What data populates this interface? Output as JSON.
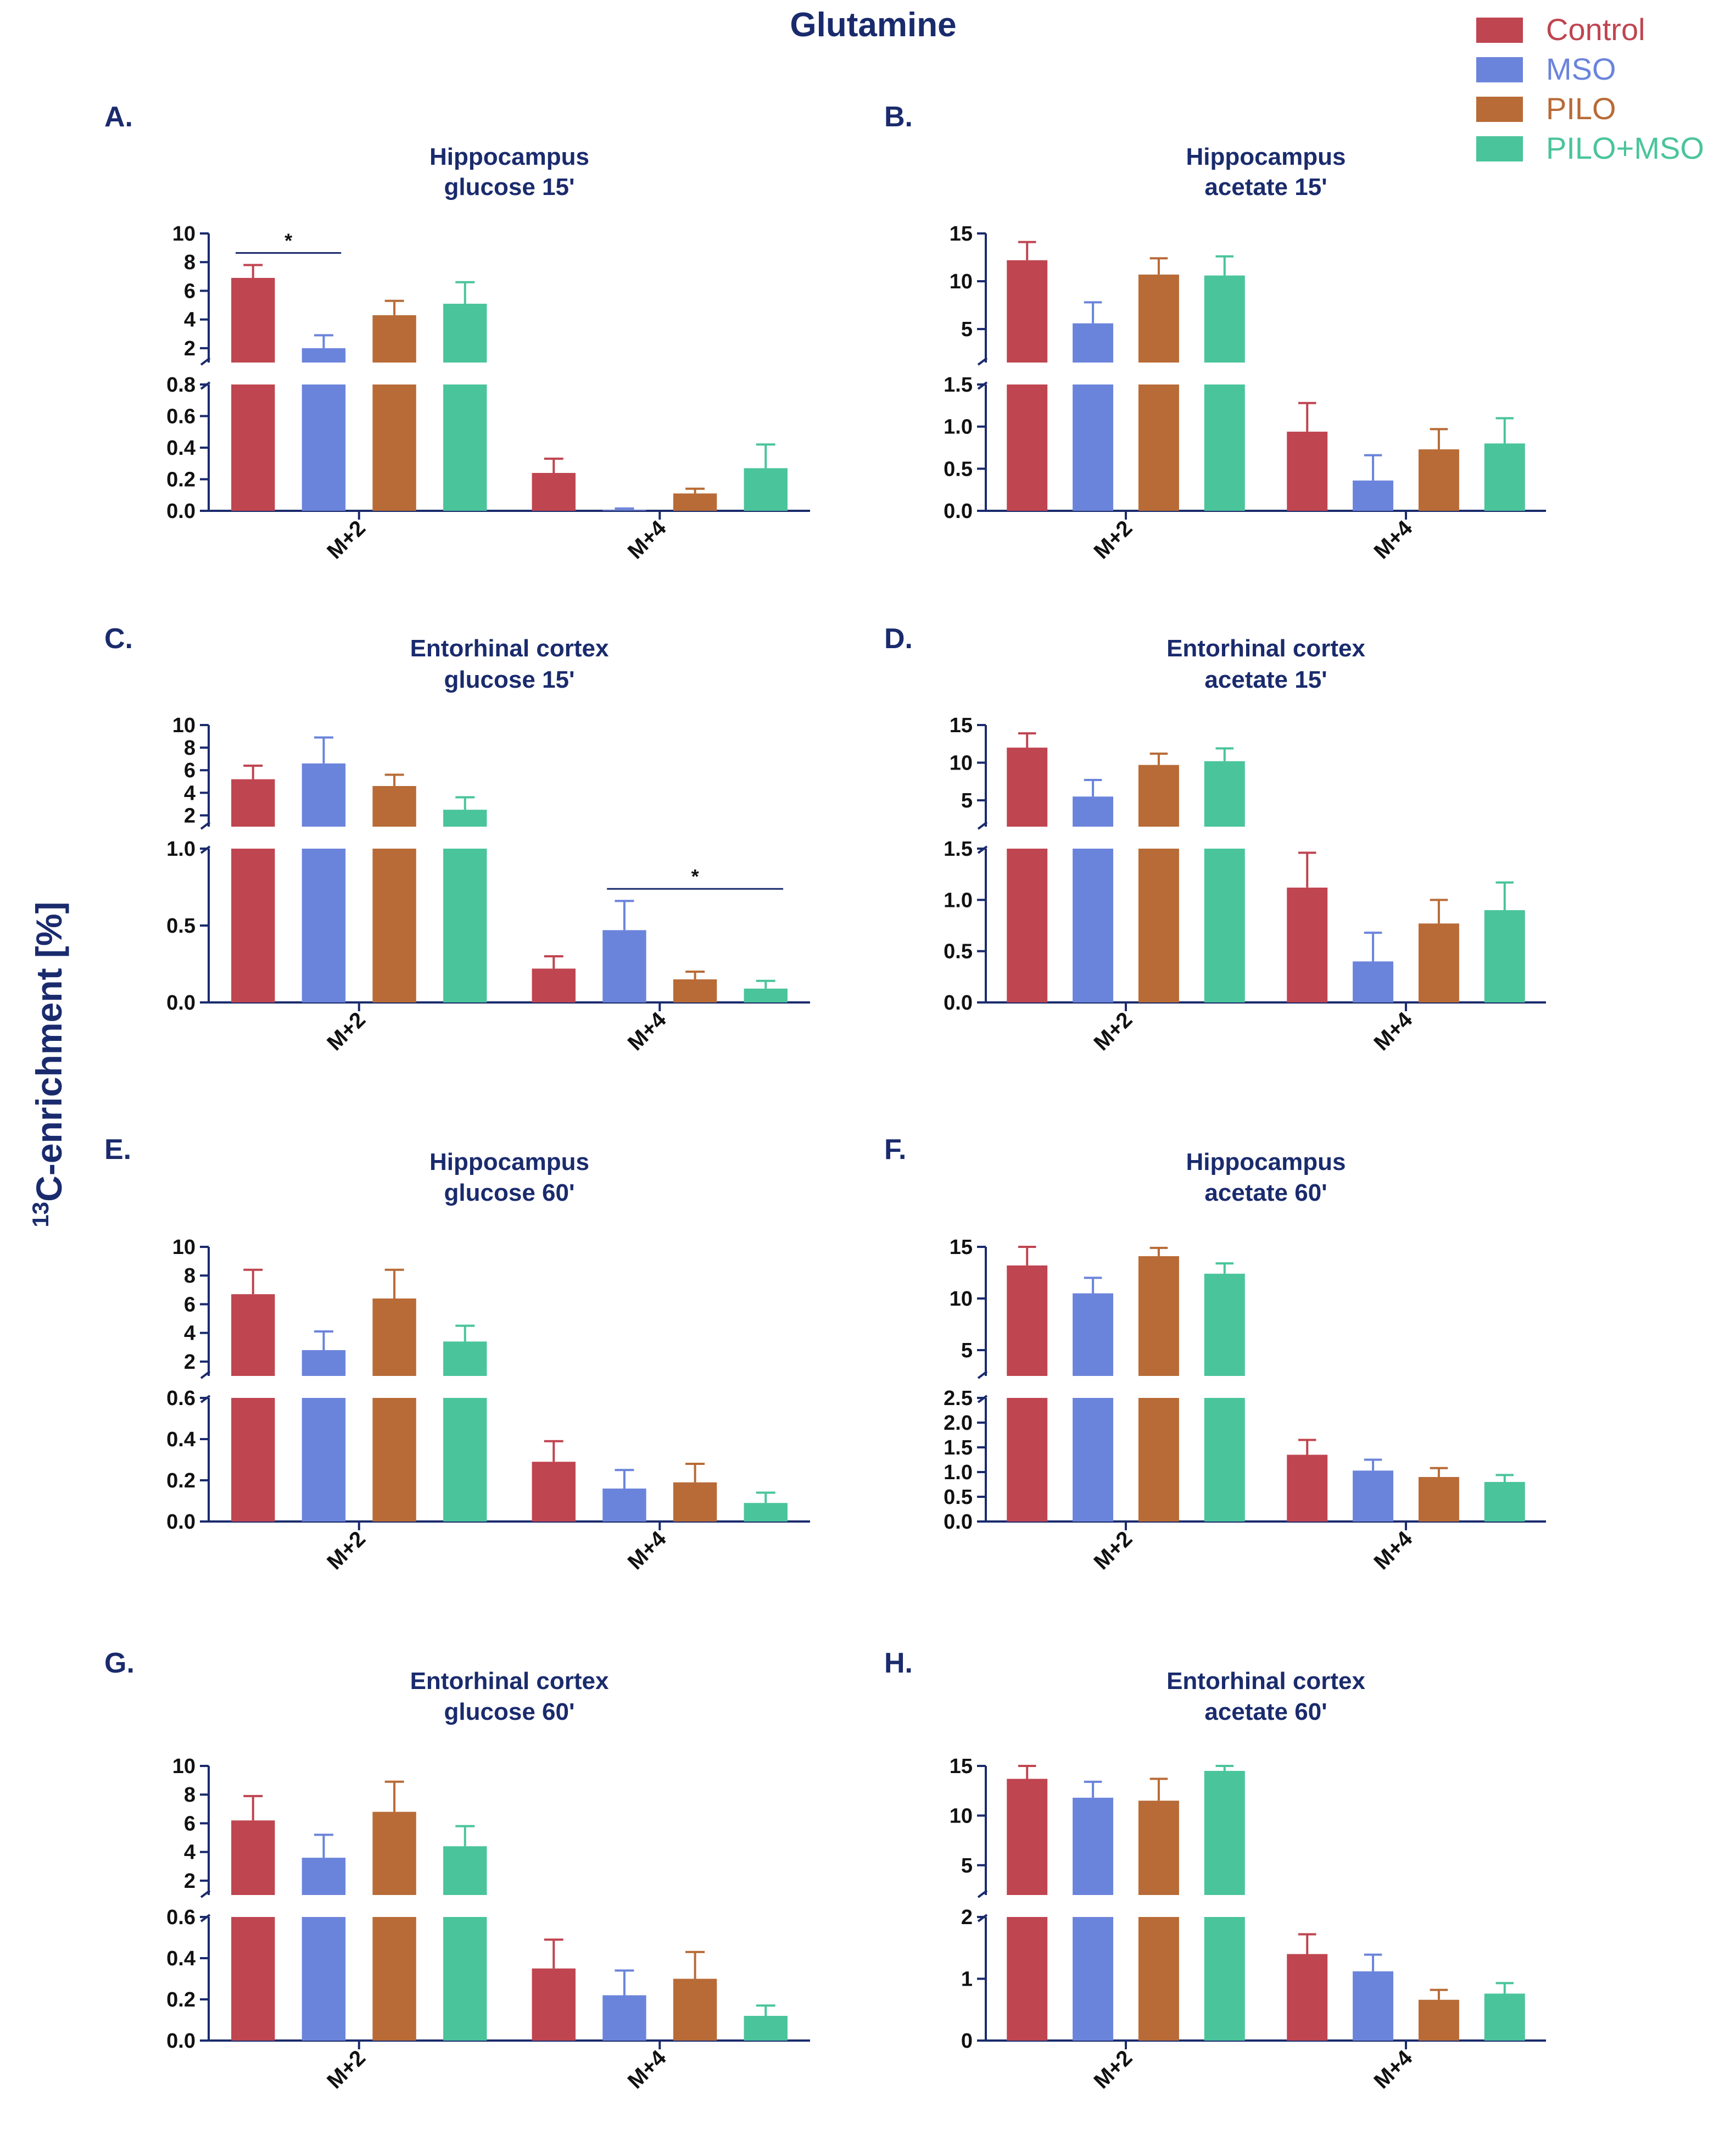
{
  "figure": {
    "title": "Glutamine",
    "ylabel_sup": "13",
    "ylabel_main": "C-enrichment [%]"
  },
  "legend": [
    {
      "name": "Control",
      "color": "#bf4550"
    },
    {
      "name": "MSO",
      "color": "#6b84db"
    },
    {
      "name": "PILO",
      "color": "#b86b37"
    },
    {
      "name": "PILO+MSO",
      "color": "#4ac49b"
    }
  ],
  "chart_data": [
    {
      "panel": "A.",
      "title": [
        "Hippocampus",
        "glucose 15'"
      ],
      "type": "bar",
      "categories": [
        "M+2",
        "M+4"
      ],
      "axis_break": true,
      "upper_range": [
        1,
        10
      ],
      "upper_ticks": [
        2,
        4,
        6,
        8,
        10
      ],
      "lower_range": [
        0,
        0.8
      ],
      "lower_ticks": [
        0.0,
        0.2,
        0.4,
        0.6,
        0.8
      ],
      "series": [
        {
          "name": "Control",
          "values": [
            6.9,
            0.24
          ],
          "errors": [
            0.9,
            0.09
          ]
        },
        {
          "name": "MSO",
          "values": [
            2.0,
            0.005
          ],
          "errors": [
            0.9,
            0.01
          ]
        },
        {
          "name": "PILO",
          "values": [
            4.3,
            0.11
          ],
          "errors": [
            1.0,
            0.03
          ]
        },
        {
          "name": "PILO+MSO",
          "values": [
            5.1,
            0.27
          ],
          "errors": [
            1.5,
            0.15
          ]
        }
      ],
      "significance": [
        {
          "category": "M+2",
          "from": "Control",
          "to": "MSO",
          "label": "*"
        }
      ]
    },
    {
      "panel": "B.",
      "title": [
        "Hippocampus",
        "acetate 15'"
      ],
      "type": "bar",
      "categories": [
        "M+2",
        "M+4"
      ],
      "axis_break": true,
      "upper_range": [
        1.5,
        15
      ],
      "upper_ticks": [
        5,
        10,
        15
      ],
      "lower_range": [
        0,
        1.5
      ],
      "lower_ticks": [
        0.0,
        0.5,
        1.0,
        1.5
      ],
      "series": [
        {
          "name": "Control",
          "values": [
            12.2,
            0.94
          ],
          "errors": [
            1.9,
            0.34
          ]
        },
        {
          "name": "MSO",
          "values": [
            5.6,
            0.36
          ],
          "errors": [
            2.2,
            0.3
          ]
        },
        {
          "name": "PILO",
          "values": [
            10.7,
            0.73
          ],
          "errors": [
            1.7,
            0.24
          ]
        },
        {
          "name": "PILO+MSO",
          "values": [
            10.6,
            0.8
          ],
          "errors": [
            2.0,
            0.3
          ]
        }
      ],
      "significance": []
    },
    {
      "panel": "C.",
      "title": [
        "Entorhinal cortex",
        "glucose 15'"
      ],
      "type": "bar",
      "categories": [
        "M+2",
        "M+4"
      ],
      "axis_break": true,
      "upper_range": [
        1,
        10
      ],
      "upper_ticks": [
        2,
        4,
        6,
        8,
        10
      ],
      "lower_range": [
        0,
        1.0
      ],
      "lower_ticks": [
        0.0,
        0.5,
        1.0
      ],
      "series": [
        {
          "name": "Control",
          "values": [
            5.2,
            0.22
          ],
          "errors": [
            1.2,
            0.08
          ]
        },
        {
          "name": "MSO",
          "values": [
            6.6,
            0.47
          ],
          "errors": [
            2.3,
            0.19
          ]
        },
        {
          "name": "PILO",
          "values": [
            4.6,
            0.15
          ],
          "errors": [
            1.0,
            0.05
          ]
        },
        {
          "name": "PILO+MSO",
          "values": [
            2.5,
            0.09
          ],
          "errors": [
            1.1,
            0.05
          ]
        }
      ],
      "significance": [
        {
          "category": "M+4",
          "from": "MSO",
          "to": "PILO+MSO",
          "label": "*"
        }
      ]
    },
    {
      "panel": "D.",
      "title": [
        "Entorhinal cortex",
        "acetate 15'"
      ],
      "type": "bar",
      "categories": [
        "M+2",
        "M+4"
      ],
      "axis_break": true,
      "upper_range": [
        1.5,
        15
      ],
      "upper_ticks": [
        5,
        10,
        15
      ],
      "lower_range": [
        0,
        1.5
      ],
      "lower_ticks": [
        0.0,
        0.5,
        1.0,
        1.5
      ],
      "series": [
        {
          "name": "Control",
          "values": [
            12.0,
            1.12
          ],
          "errors": [
            1.9,
            0.34
          ]
        },
        {
          "name": "MSO",
          "values": [
            5.5,
            0.4
          ],
          "errors": [
            2.2,
            0.28
          ]
        },
        {
          "name": "PILO",
          "values": [
            9.7,
            0.77
          ],
          "errors": [
            1.5,
            0.23
          ]
        },
        {
          "name": "PILO+MSO",
          "values": [
            10.2,
            0.9
          ],
          "errors": [
            1.7,
            0.27
          ]
        }
      ],
      "significance": []
    },
    {
      "panel": "E.",
      "title": [
        "Hippocampus",
        "glucose 60'"
      ],
      "type": "bar",
      "categories": [
        "M+2",
        "M+4"
      ],
      "axis_break": true,
      "upper_range": [
        1,
        10
      ],
      "upper_ticks": [
        2,
        4,
        6,
        8,
        10
      ],
      "lower_range": [
        0,
        0.6
      ],
      "lower_ticks": [
        0.0,
        0.2,
        0.4,
        0.6
      ],
      "series": [
        {
          "name": "Control",
          "values": [
            6.7,
            0.29
          ],
          "errors": [
            1.7,
            0.1
          ]
        },
        {
          "name": "MSO",
          "values": [
            2.8,
            0.16
          ],
          "errors": [
            1.3,
            0.09
          ]
        },
        {
          "name": "PILO",
          "values": [
            6.4,
            0.19
          ],
          "errors": [
            2.0,
            0.09
          ]
        },
        {
          "name": "PILO+MSO",
          "values": [
            3.4,
            0.09
          ],
          "errors": [
            1.1,
            0.05
          ]
        }
      ],
      "significance": []
    },
    {
      "panel": "F.",
      "title": [
        "Hippocampus",
        "acetate 60'"
      ],
      "type": "bar",
      "categories": [
        "M+2",
        "M+4"
      ],
      "axis_break": true,
      "upper_range": [
        2.5,
        15
      ],
      "upper_ticks": [
        5,
        10,
        15
      ],
      "lower_range": [
        0,
        2.5
      ],
      "lower_ticks": [
        0.0,
        0.5,
        1.0,
        1.5,
        2.0,
        2.5
      ],
      "series": [
        {
          "name": "Control",
          "values": [
            13.2,
            1.35
          ],
          "errors": [
            1.8,
            0.3
          ]
        },
        {
          "name": "MSO",
          "values": [
            10.5,
            1.03
          ],
          "errors": [
            1.5,
            0.22
          ]
        },
        {
          "name": "PILO",
          "values": [
            14.1,
            0.9
          ],
          "errors": [
            0.8,
            0.18
          ]
        },
        {
          "name": "PILO+MSO",
          "values": [
            12.4,
            0.8
          ],
          "errors": [
            1.0,
            0.14
          ]
        }
      ],
      "significance": []
    },
    {
      "panel": "G.",
      "title": [
        "Entorhinal cortex",
        "glucose 60'"
      ],
      "type": "bar",
      "categories": [
        "M+2",
        "M+4"
      ],
      "axis_break": true,
      "upper_range": [
        1,
        10
      ],
      "upper_ticks": [
        2,
        4,
        6,
        8,
        10
      ],
      "lower_range": [
        0,
        0.6
      ],
      "lower_ticks": [
        0.0,
        0.2,
        0.4,
        0.6
      ],
      "series": [
        {
          "name": "Control",
          "values": [
            6.2,
            0.35
          ],
          "errors": [
            1.7,
            0.14
          ]
        },
        {
          "name": "MSO",
          "values": [
            3.6,
            0.22
          ],
          "errors": [
            1.6,
            0.12
          ]
        },
        {
          "name": "PILO",
          "values": [
            6.8,
            0.3
          ],
          "errors": [
            2.1,
            0.13
          ]
        },
        {
          "name": "PILO+MSO",
          "values": [
            4.4,
            0.12
          ],
          "errors": [
            1.4,
            0.05
          ]
        }
      ],
      "significance": []
    },
    {
      "panel": "H.",
      "title": [
        "Entorhinal cortex",
        "acetate 60'"
      ],
      "type": "bar",
      "categories": [
        "M+2",
        "M+4"
      ],
      "axis_break": true,
      "upper_range": [
        2,
        15
      ],
      "upper_ticks": [
        5,
        10,
        15
      ],
      "lower_range": [
        0,
        2
      ],
      "lower_ticks": [
        0,
        1,
        2
      ],
      "series": [
        {
          "name": "Control",
          "values": [
            13.7,
            1.4
          ],
          "errors": [
            1.7,
            0.32
          ]
        },
        {
          "name": "MSO",
          "values": [
            11.8,
            1.12
          ],
          "errors": [
            1.6,
            0.27
          ]
        },
        {
          "name": "PILO",
          "values": [
            11.5,
            0.66
          ],
          "errors": [
            2.2,
            0.16
          ]
        },
        {
          "name": "PILO+MSO",
          "values": [
            14.5,
            0.76
          ],
          "errors": [
            1.0,
            0.17
          ]
        }
      ],
      "significance": []
    }
  ]
}
